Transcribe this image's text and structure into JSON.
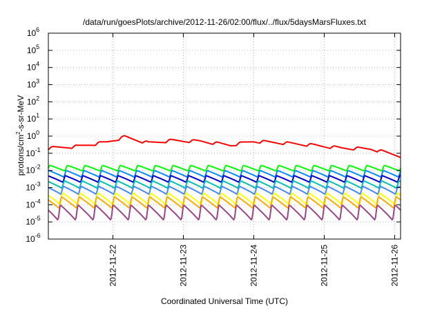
{
  "chart_data": {
    "type": "line",
    "title": "/data/run/goesPlots/archive/2012-11-26/02:00/flux/../flux/5daysMarsFluxes.txt",
    "xlabel": "Coordinated Universal Time (UTC)",
    "ylabel": "protons/cm²-s-sr-MeV",
    "yscale": "log",
    "ylim": [
      1e-06,
      1000000.0
    ],
    "xlim": [
      "2012-11-21 02:00",
      "2012-11-26 02:00"
    ],
    "grid": true,
    "legend": "none",
    "x_ticks": [
      "2012-11-22",
      "2012-11-23",
      "2012-11-24",
      "2012-11-25",
      "2012-11-26"
    ],
    "y_ticks": [
      {
        "base": "10",
        "exp": "-6"
      },
      {
        "base": "10",
        "exp": "-5"
      },
      {
        "base": "10",
        "exp": "-4"
      },
      {
        "base": "10",
        "exp": "-3"
      },
      {
        "base": "10",
        "exp": "-2"
      },
      {
        "base": "10",
        "exp": "-1"
      },
      {
        "base": "10",
        "exp": "0"
      },
      {
        "base": "10",
        "exp": "1"
      },
      {
        "base": "10",
        "exp": "2"
      },
      {
        "base": "10",
        "exp": "3"
      },
      {
        "base": "10",
        "exp": "4"
      },
      {
        "base": "10",
        "exp": "5"
      },
      {
        "base": "10",
        "exp": "6"
      }
    ],
    "series": [
      {
        "color": "#ff0000",
        "pattern": "sawtooth-slow",
        "x": [
          "2012-11-21 02:00",
          "2012-11-21 12:00",
          "2012-11-21 22:00",
          "2012-11-22 04:00",
          "2012-11-22 12:00",
          "2012-11-22 20:00",
          "2012-11-23 06:00",
          "2012-11-23 16:00",
          "2012-11-24 00:00",
          "2012-11-24 10:00",
          "2012-11-24 20:00",
          "2012-11-25 06:00",
          "2012-11-25 16:00",
          "2012-11-26 02:00"
        ],
        "y": [
          0.2,
          0.25,
          0.45,
          0.9,
          0.4,
          0.55,
          0.5,
          0.3,
          0.5,
          0.4,
          0.3,
          0.2,
          0.18,
          0.07
        ]
      },
      {
        "color": "#00ff00",
        "base_low": 0.009,
        "base_high": 0.02
      },
      {
        "color": "#0088ff",
        "base_low": 0.004,
        "base_high": 0.01
      },
      {
        "color": "#0000cc",
        "base_low": 0.002,
        "base_high": 0.005
      },
      {
        "color": "#00c0b0",
        "base_low": 0.0009,
        "base_high": 0.0025
      },
      {
        "color": "#4488ff",
        "base_low": 0.0004,
        "base_high": 0.0012
      },
      {
        "color": "#ffff00",
        "base_low": 0.0001,
        "base_high": 0.0005
      },
      {
        "color": "#ffaa00",
        "base_low": 6e-05,
        "base_high": 0.0003
      },
      {
        "color": "#994488",
        "base_low": 1.2e-05,
        "base_high": 0.0001
      }
    ]
  }
}
